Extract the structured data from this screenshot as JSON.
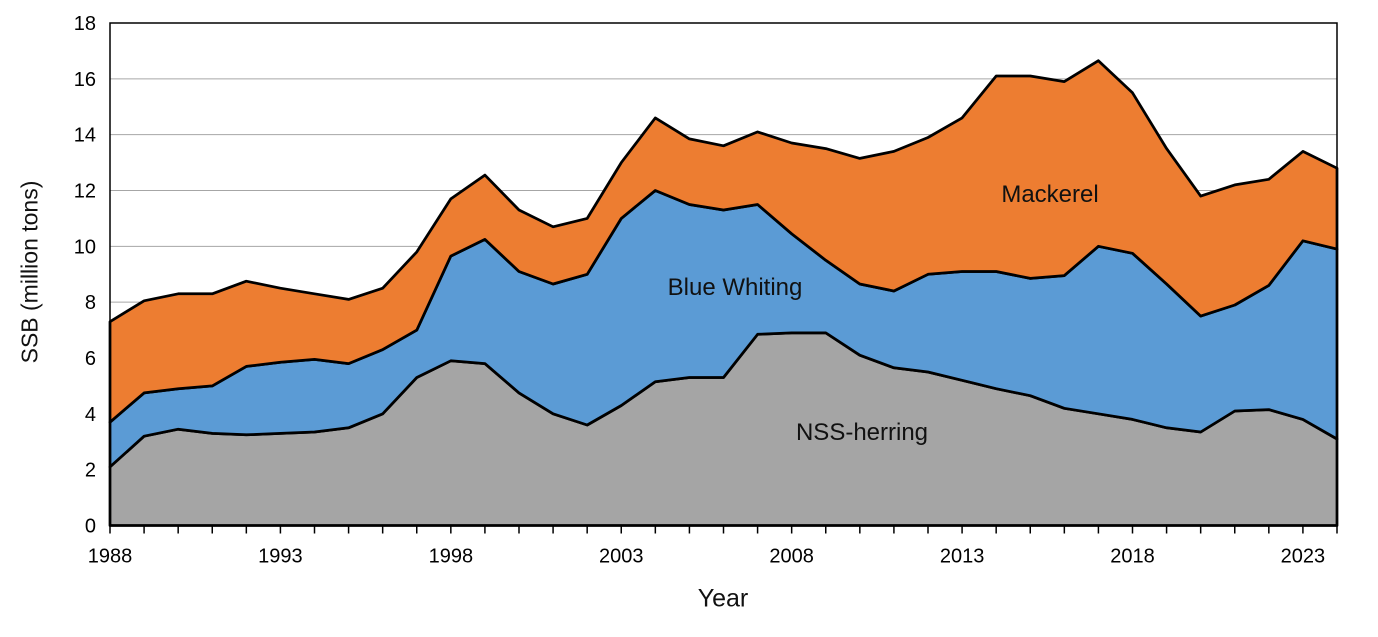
{
  "figure": {
    "y_axis_label": "SSB (million tons)",
    "x_axis_label": "Year",
    "series_labels": {
      "nss_herring": "NSS-herring",
      "blue_whiting": "Blue Whiting",
      "mackerel": "Mackerel"
    }
  },
  "chart_data": {
    "type": "area",
    "stacked": true,
    "title": "",
    "xlabel": "Year",
    "ylabel": "SSB (million tons)",
    "xlim": [
      1988,
      2024
    ],
    "ylim": [
      0,
      18
    ],
    "grid": true,
    "legend_position": "inline-labels",
    "x": [
      1988,
      1989,
      1990,
      1991,
      1992,
      1993,
      1994,
      1995,
      1996,
      1997,
      1998,
      1999,
      2000,
      2001,
      2002,
      2003,
      2004,
      2005,
      2006,
      2007,
      2008,
      2009,
      2010,
      2011,
      2012,
      2013,
      2014,
      2015,
      2016,
      2017,
      2018,
      2019,
      2020,
      2021,
      2022,
      2023,
      2024
    ],
    "x_tick_labels": [
      1988,
      1993,
      1998,
      2003,
      2008,
      2013,
      2018,
      2023
    ],
    "y_ticks": [
      0,
      2,
      4,
      6,
      8,
      10,
      12,
      14,
      16,
      18
    ],
    "series": [
      {
        "name": "NSS-herring",
        "color": "#A5A5A5",
        "values": [
          2.1,
          3.2,
          3.45,
          3.3,
          3.25,
          3.3,
          3.35,
          3.5,
          4.0,
          5.3,
          5.9,
          5.8,
          4.75,
          4.0,
          3.6,
          4.3,
          5.15,
          5.3,
          5.3,
          6.85,
          6.9,
          6.9,
          6.1,
          5.65,
          5.5,
          5.2,
          4.9,
          4.65,
          4.2,
          4.0,
          3.8,
          3.5,
          3.35,
          4.1,
          4.15,
          3.8,
          3.1
        ]
      },
      {
        "name": "Blue Whiting",
        "color": "#5B9BD5",
        "values": [
          1.6,
          1.55,
          1.45,
          1.7,
          2.45,
          2.55,
          2.6,
          2.3,
          2.3,
          1.7,
          3.75,
          4.45,
          4.35,
          4.65,
          5.4,
          6.7,
          6.85,
          6.2,
          6.0,
          4.65,
          3.55,
          2.6,
          2.55,
          2.75,
          3.5,
          3.9,
          4.2,
          4.2,
          4.75,
          6.0,
          5.95,
          5.15,
          4.15,
          3.8,
          4.45,
          6.4,
          6.8
        ]
      },
      {
        "name": "Mackerel",
        "color": "#ED7D31",
        "values": [
          3.6,
          3.3,
          3.4,
          3.3,
          3.05,
          2.65,
          2.35,
          2.3,
          2.2,
          2.8,
          2.05,
          2.3,
          2.2,
          2.05,
          2.0,
          2.0,
          2.6,
          2.35,
          2.3,
          2.6,
          3.25,
          4.0,
          4.5,
          5.0,
          4.9,
          5.5,
          7.0,
          7.25,
          6.95,
          6.65,
          5.75,
          4.85,
          4.3,
          4.3,
          3.8,
          3.2,
          2.9
        ]
      }
    ],
    "annotations": [
      {
        "key": "nss_herring",
        "x": 2010.1,
        "y": 3.3
      },
      {
        "key": "blue_whiting",
        "x": 2006.3,
        "y": 8.5
      },
      {
        "key": "mackerel",
        "x": 2015.6,
        "y": 11.85
      }
    ],
    "axis_color": "#000000",
    "gridline_color": "#A6A6A6",
    "outline_color": "#000000"
  }
}
